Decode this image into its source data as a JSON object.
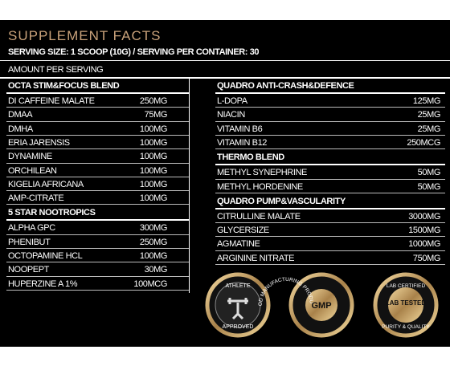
{
  "header": {
    "title": "SUPPLEMENT FACTS",
    "serving_size": "SERVING SIZE: 1 SCOOP (10G) / SERVING PER CONTAINER: 30",
    "amount_label": "AMOUNT PER SERVING"
  },
  "left_column": [
    {
      "heading": "OCTA STIM&FOCUS BLEND",
      "items": [
        [
          "DI CAFFEINE MALATE",
          "250MG"
        ],
        [
          "DMAA",
          "75MG"
        ],
        [
          "DMHA",
          "100MG"
        ],
        [
          "ERIA JARENSIS",
          "100MG"
        ],
        [
          "DYNAMINE",
          "100MG"
        ],
        [
          "ORCHILEAN",
          "100MG"
        ],
        [
          "KIGELIA AFRICANA",
          "100MG"
        ],
        [
          "AMP-CITRATE",
          "100MG"
        ]
      ]
    },
    {
      "heading": "5 STAR NOOTROPICS",
      "items": [
        [
          "ALPHA GPC",
          "300MG"
        ],
        [
          "PHENIBUT",
          "250MG"
        ],
        [
          "OCTOPAMINE HCL",
          "100MG"
        ],
        [
          "NOOPEPT",
          "30MG"
        ],
        [
          "HUPERZINE A 1%",
          "100MCG"
        ]
      ]
    }
  ],
  "right_column": [
    {
      "heading": "QUADRO  ANTI-CRASH&DEFENCE",
      "items": [
        [
          "L-DOPA",
          "125MG"
        ],
        [
          "NIACIN",
          "25MG"
        ],
        [
          "VITAMIN B6",
          "25MG"
        ],
        [
          "VITAMIN B12",
          "250MCG"
        ]
      ]
    },
    {
      "heading": "THERMO BLEND",
      "items": [
        [
          "METHYL SYNEPHRINE",
          "50MG"
        ],
        [
          "METHYL HORDENINE",
          "50MG"
        ]
      ]
    },
    {
      "heading": "QUADRO PUMP&VASCULARITY",
      "items": [
        [
          "CITRULLINE MALATE",
          "3000MG"
        ],
        [
          "GLYCERSIZE",
          "1500MG"
        ],
        [
          "AGMATINE",
          "1000MG"
        ],
        [
          "ARGININE NITRATE",
          "750MG"
        ]
      ]
    }
  ],
  "badges": [
    {
      "top": "ATHLETE",
      "bottom": "APPROVED"
    },
    {
      "ring": "GOOD MANUFACTURING PRODUCTS",
      "center": "GMP"
    },
    {
      "top": "LAB CERTIFIED",
      "center": "LAB TESTED",
      "bottom": "PURITY & QUALITY"
    }
  ]
}
